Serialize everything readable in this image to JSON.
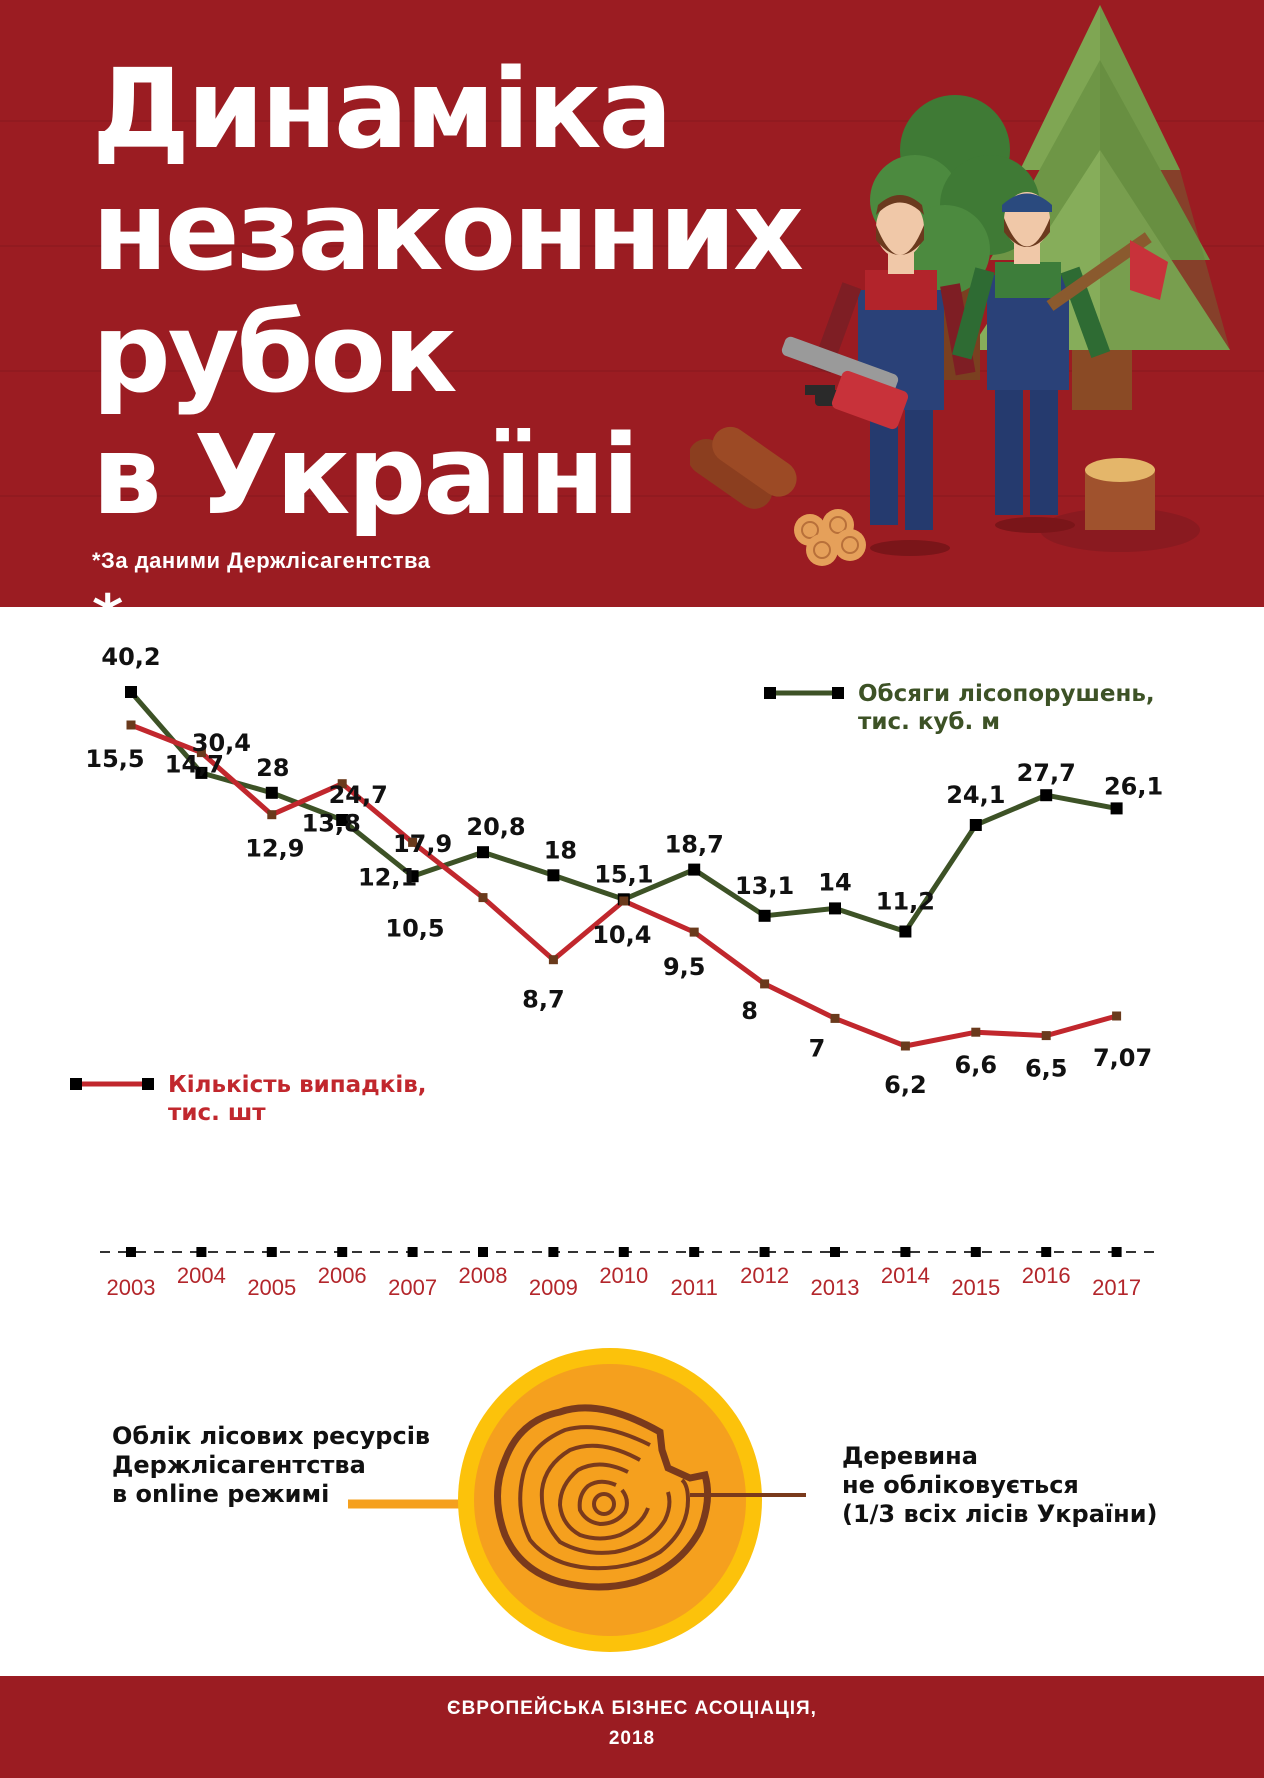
{
  "header": {
    "title_lines": [
      "Динаміка",
      "незаконних",
      "рубок",
      "в Україні"
    ],
    "title_mark": "*",
    "source_note": "*За даними Держлісагентства",
    "illustration": "lumberjacks-chainsaw-axe-trees-logs"
  },
  "chart_data": {
    "type": "line",
    "categories": [
      "2003",
      "2004",
      "2005",
      "2006",
      "2007",
      "2008",
      "2009",
      "2010",
      "2011",
      "2012",
      "2013",
      "2014",
      "2015",
      "2016",
      "2017"
    ],
    "series": [
      {
        "name": "Обсяги лісопорушень, тис. куб. м",
        "legend_lines": [
          "Обсяги лісопорушень,",
          "тис. куб. м"
        ],
        "color": "#3d5226",
        "values": [
          40.2,
          30.4,
          28,
          24.7,
          17.9,
          20.8,
          18,
          15.1,
          18.7,
          13.1,
          14,
          11.2,
          24.1,
          27.7,
          26.1
        ],
        "labels": [
          "40,2",
          "30,4",
          "28",
          "24,7",
          "17,9",
          "20,8",
          "18",
          "15,1",
          "18,7",
          "13,1",
          "14",
          "11,2",
          "24,1",
          "27,7",
          "26,1"
        ]
      },
      {
        "name": "Кількість випадків, тис. шт",
        "legend_lines": [
          "Кількість випадків,",
          "тис. шт"
        ],
        "color": "#c1272d",
        "values": [
          15.5,
          14.7,
          12.9,
          13.8,
          12.1,
          10.5,
          8.7,
          10.4,
          9.5,
          8,
          7,
          6.2,
          6.6,
          6.5,
          7.07
        ],
        "labels": [
          "15,5",
          "14,7",
          "12,9",
          "13,8",
          "12,1",
          "10,5",
          "8,7",
          "10,4",
          "9,5",
          "8",
          "7",
          "6,2",
          "6,6",
          "6,5",
          "7,07"
        ]
      }
    ],
    "grid": false
  },
  "bottom": {
    "left_lines": [
      "Облік лісових ресурсів",
      "Держлісагентства",
      "в online режимі"
    ],
    "right_lines": [
      "Деревина",
      "не обліковується",
      "(1/3 всіх лісів України)"
    ],
    "colors": {
      "ring": "#fcc20b",
      "disc": "#f5a01e",
      "wood_line": "#7a3a1c",
      "left_line": "#f5a01e"
    }
  },
  "footer": {
    "line1": "ЄВРОПЕЙСЬКА БІЗНЕС АСОЦІАЦІЯ,",
    "line2": "2018"
  },
  "colors": {
    "brand_red": "#9b1c22",
    "green_line": "#3d5226",
    "red_line": "#c1272d"
  }
}
